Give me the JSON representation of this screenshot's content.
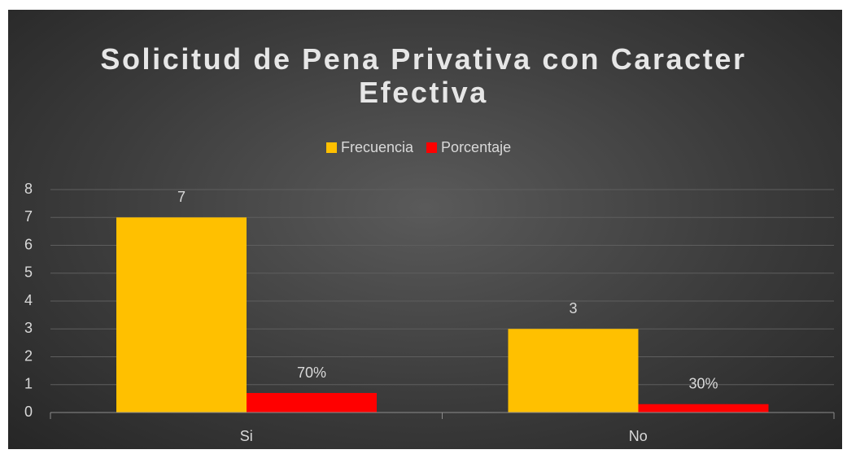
{
  "chart_data": {
    "type": "bar",
    "title": "Solicitud de Pena Privativa con Caracter Efectiva",
    "categories": [
      "Si",
      "No"
    ],
    "series": [
      {
        "name": "Frecuencia",
        "color": "#ffc000",
        "values": [
          7,
          3
        ]
      },
      {
        "name": "Porcentaje",
        "color": "#ff0000",
        "values": [
          0.7,
          0.3
        ],
        "value_labels": [
          "70%",
          "30%"
        ]
      }
    ],
    "ylim": [
      0,
      8
    ],
    "yticks": [
      0,
      1,
      2,
      3,
      4,
      5,
      6,
      7,
      8
    ],
    "grid": true,
    "legend": "top"
  }
}
